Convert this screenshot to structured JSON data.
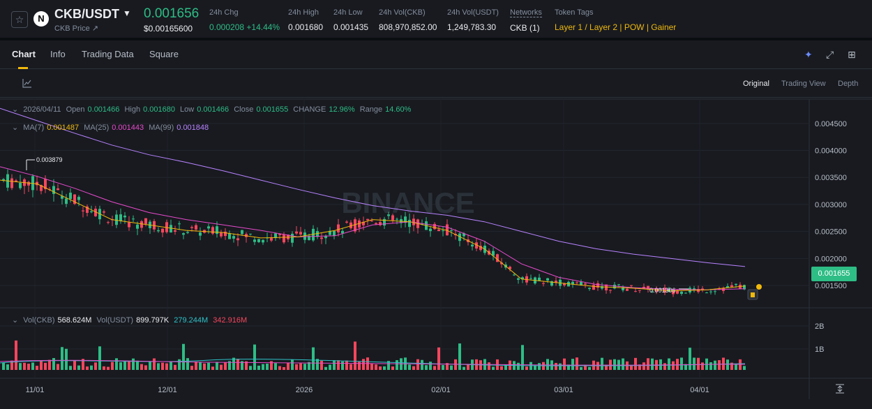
{
  "header": {
    "pair": "CKB/USDT",
    "sub_label": "CKB Price ↗",
    "last_price": "0.001656",
    "last_price_usd": "$0.00165600",
    "stats": [
      {
        "label": "24h Chg",
        "value": "0.000208 +14.44%",
        "accent": "green"
      },
      {
        "label": "24h High",
        "value": "0.001680",
        "accent": ""
      },
      {
        "label": "24h Low",
        "value": "0.001435",
        "accent": ""
      },
      {
        "label": "24h Vol(CKB)",
        "value": "808,970,852.00",
        "accent": ""
      },
      {
        "label": "24h Vol(USDT)",
        "value": "1,249,783.30",
        "accent": ""
      },
      {
        "label": "Networks",
        "value": "CKB (1)",
        "accent": ""
      },
      {
        "label": "Token Tags",
        "value": "Layer 1 / Layer 2 | POW | Gainer",
        "accent": "gold"
      }
    ]
  },
  "tabs": [
    "Chart",
    "Info",
    "Trading Data",
    "Square"
  ],
  "views": [
    "Original",
    "Trading View",
    "Depth"
  ],
  "ohlc": {
    "date": "2026/04/11",
    "open_label": "Open",
    "open": "0.001466",
    "high_label": "High",
    "high": "0.001680",
    "low_label": "Low",
    "low": "0.001466",
    "close_label": "Close",
    "close": "0.001655",
    "change_label": "CHANGE",
    "change": "12.96%",
    "range_label": "Range",
    "range": "14.60%"
  },
  "ma": {
    "ma7_label": "MA(7)",
    "ma7": "0.001487",
    "ma25_label": "MA(25)",
    "ma25": "0.001443",
    "ma99_label": "MA(99)",
    "ma99": "0.001848"
  },
  "volume": {
    "vol_ckb_label": "Vol(CKB)",
    "vol_ckb": "568.624M",
    "vol_usdt_label": "Vol(USDT)",
    "vol_usdt": "899.797K",
    "ma1": "279.244M",
    "ma2": "342.916M"
  },
  "chart_data": {
    "type": "line",
    "price_ticks": [
      "0.004500",
      "0.004000",
      "0.003500",
      "0.003000",
      "0.002500",
      "0.002000",
      "0.001500"
    ],
    "volume_ticks": [
      "2B",
      "1B"
    ],
    "x_ticks": [
      "11/01",
      "12/01",
      "2026",
      "02/01",
      "03/01",
      "04/01"
    ],
    "high_marker": "0.003879",
    "low_marker": "0.001306",
    "current_price": "0.001655",
    "watermark": "BINANCE",
    "series": [
      {
        "name": "MA(99)",
        "values": [
          0.00478,
          0.00455,
          0.00432,
          0.0041,
          0.00392,
          0.00378,
          0.00362,
          0.00345,
          0.00328,
          0.00312,
          0.00298,
          0.00288,
          0.0028,
          0.00268,
          0.0025,
          0.00232,
          0.00218,
          0.00208,
          0.002,
          0.00192,
          0.00185
        ]
      },
      {
        "name": "MA(25)",
        "values": [
          0.0037,
          0.00352,
          0.0033,
          0.00305,
          0.00285,
          0.00272,
          0.00262,
          0.00252,
          0.0024,
          0.00242,
          0.00262,
          0.00268,
          0.00258,
          0.00232,
          0.0019,
          0.00165,
          0.00152,
          0.00146,
          0.00143,
          0.00142,
          0.00144
        ]
      },
      {
        "name": "MA(7)",
        "values": [
          0.00345,
          0.00338,
          0.00305,
          0.00272,
          0.00262,
          0.00252,
          0.00248,
          0.00238,
          0.0024,
          0.00252,
          0.00272,
          0.00268,
          0.00252,
          0.00218,
          0.00162,
          0.00155,
          0.00148,
          0.00145,
          0.0014,
          0.00142,
          0.00149
        ]
      }
    ]
  },
  "colors": {
    "up": "#2ebd85",
    "down": "#f6465d",
    "accent": "#f0b90b"
  }
}
